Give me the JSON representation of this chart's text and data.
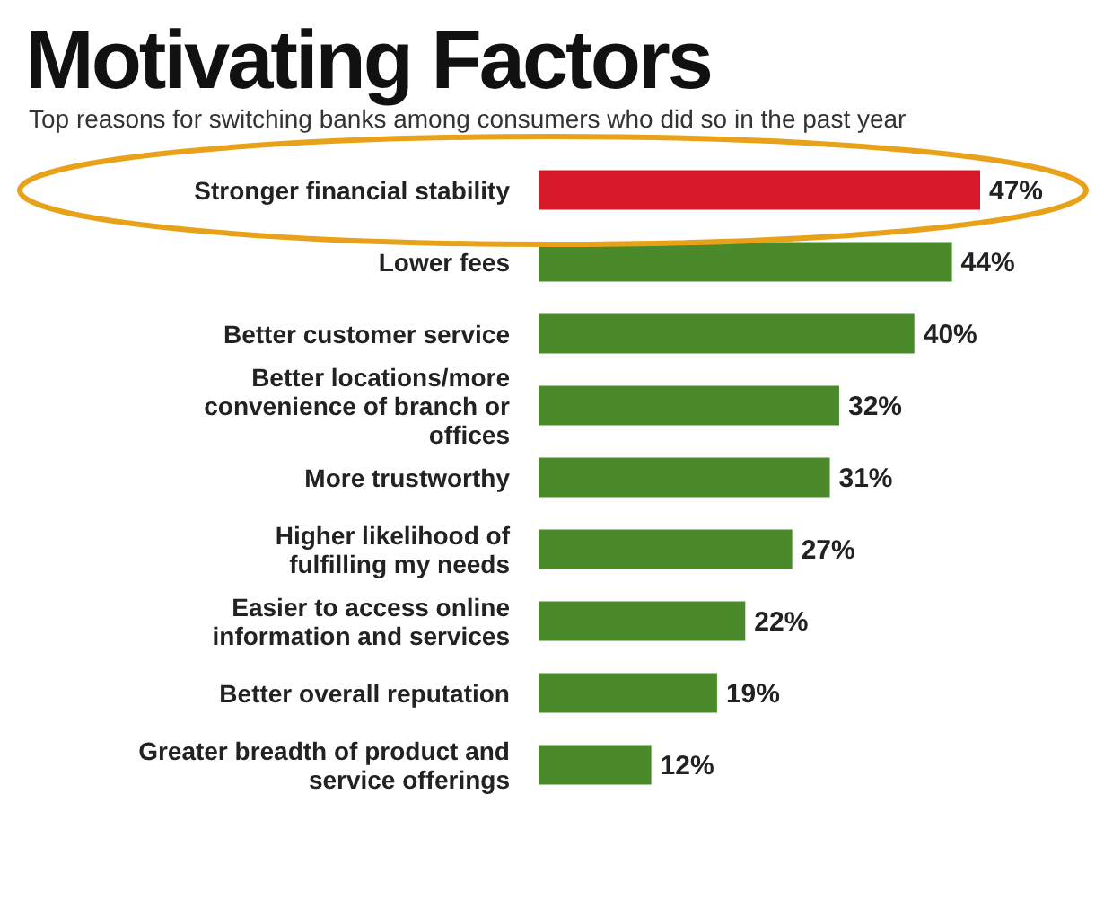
{
  "chart_data": {
    "type": "bar",
    "orientation": "horizontal",
    "title": "Motivating Factors",
    "subtitle": "Top reasons for switching banks among consumers who did so in the past year",
    "categories": [
      "Stronger financial stability",
      "Lower fees",
      "Better customer service",
      "Better locations/more convenience of branch or offices",
      "More trustworthy",
      "Higher likelihood of fulfilling my needs",
      "Easier to access online information and services",
      "Better overall reputation",
      "Greater breadth of product and service offerings"
    ],
    "values": [
      47,
      44,
      40,
      32,
      31,
      27,
      22,
      19,
      12
    ],
    "colors": [
      "#d7192a",
      "#4b8a2a",
      "#4b8a2a",
      "#4b8a2a",
      "#4b8a2a",
      "#4b8a2a",
      "#4b8a2a",
      "#4b8a2a",
      "#4b8a2a"
    ],
    "value_labels": [
      "47%",
      "44%",
      "40%",
      "32%",
      "31%",
      "27%",
      "22%",
      "19%",
      "12%"
    ]
  }
}
